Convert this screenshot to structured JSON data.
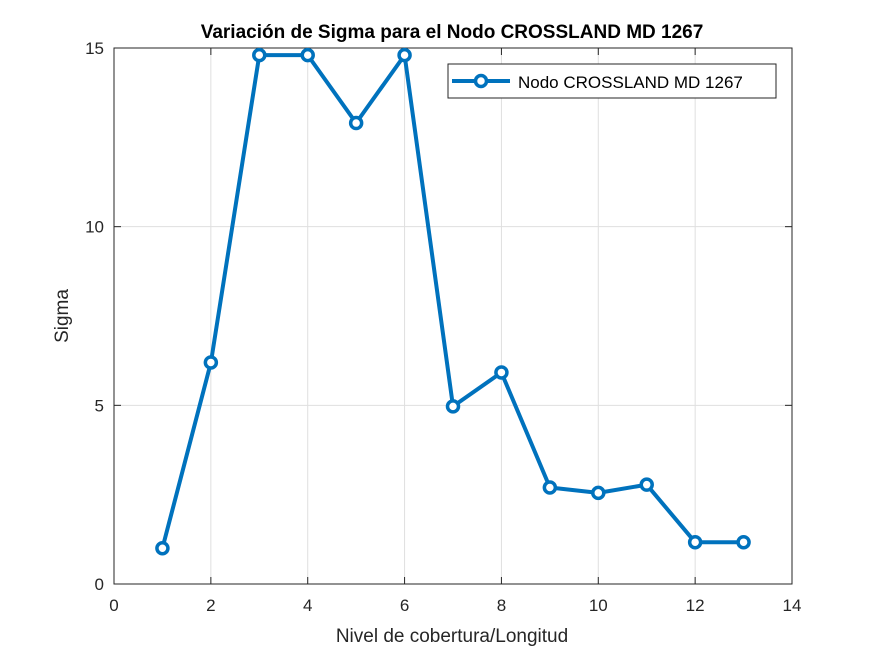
{
  "chart_data": {
    "type": "line",
    "title": "Variación de Sigma para el Nodo CROSSLAND MD 1267",
    "xlabel": "Nivel de cobertura/Longitud",
    "ylabel": "Sigma",
    "xlim": [
      0,
      14
    ],
    "ylim": [
      0,
      15
    ],
    "xticks": [
      0,
      2,
      4,
      6,
      8,
      10,
      12,
      14
    ],
    "yticks": [
      0,
      5,
      10,
      15
    ],
    "grid": true,
    "legend_position": "top-right",
    "series": [
      {
        "name": "Nodo CROSSLAND MD 1267",
        "color": "#0072bd",
        "marker": "circle",
        "x": [
          1,
          2,
          3,
          4,
          5,
          6,
          7,
          8,
          9,
          10,
          11,
          12,
          13
        ],
        "y": [
          1.0,
          6.2,
          14.8,
          14.8,
          12.9,
          14.8,
          4.97,
          5.92,
          2.7,
          2.55,
          2.78,
          1.17,
          1.17
        ]
      }
    ]
  },
  "colors": {
    "axis": "#262626",
    "grid": "#dfdfdf",
    "background": "#ffffff"
  }
}
